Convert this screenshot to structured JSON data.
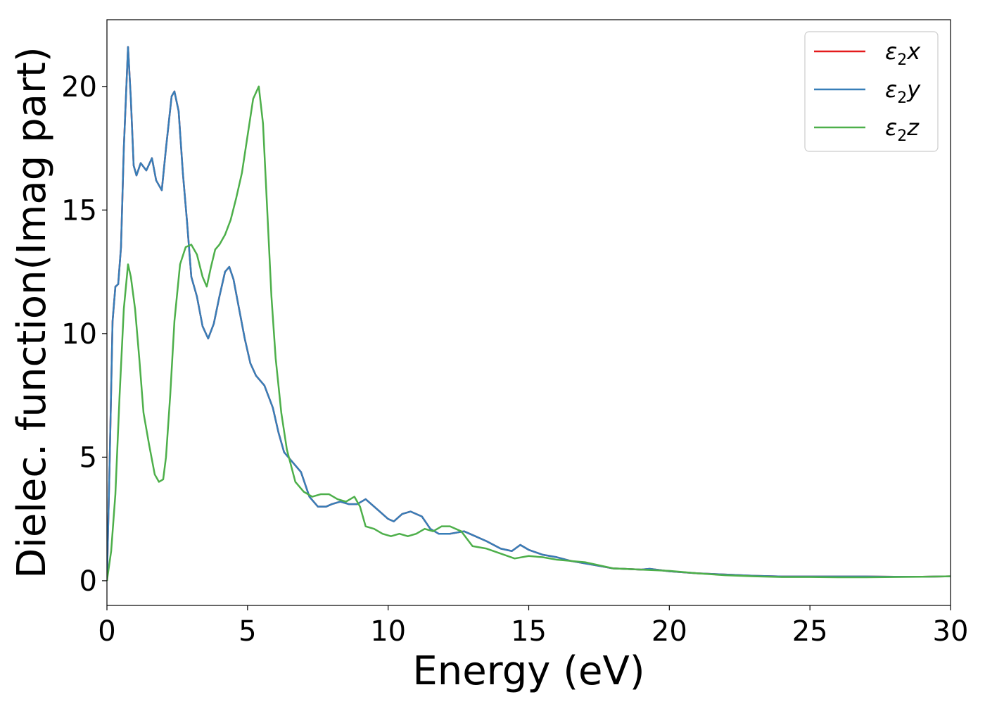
{
  "chart_data": {
    "type": "line",
    "xlabel": "Energy (eV)",
    "ylabel": "Dielec. function(Imag part)",
    "xlim": [
      0,
      30
    ],
    "ylim": [
      -1,
      22.7
    ],
    "xticks": [
      0,
      5,
      10,
      15,
      20,
      25,
      30
    ],
    "yticks": [
      0,
      5,
      10,
      15,
      20
    ],
    "legend_position": "top-right",
    "grid": false,
    "series": [
      {
        "name": "ε₂x",
        "legend": {
          "base": "ε",
          "sub": "2",
          "var": "x"
        },
        "color": "#e41a1c",
        "x": [
          0,
          0.1,
          0.2,
          0.3,
          0.4,
          0.5,
          0.6,
          0.75,
          0.85,
          0.95,
          1.05,
          1.2,
          1.4,
          1.6,
          1.75,
          1.95,
          2.1,
          2.3,
          2.4,
          2.55,
          2.7,
          2.85,
          3.0,
          3.2,
          3.4,
          3.6,
          3.8,
          4.0,
          4.2,
          4.35,
          4.5,
          4.7,
          4.9,
          5.1,
          5.3,
          5.6,
          5.9,
          6.1,
          6.3,
          6.6,
          6.9,
          7.2,
          7.5,
          7.8,
          8.0,
          8.3,
          8.6,
          8.9,
          9.2,
          9.4,
          9.7,
          10.0,
          10.2,
          10.5,
          10.8,
          11.2,
          11.5,
          11.8,
          12.2,
          12.7,
          13.1,
          13.5,
          14.0,
          14.4,
          14.7,
          15.0,
          15.5,
          16.0,
          16.5,
          17.0,
          17.5,
          18.0,
          19.0,
          19.3,
          20.0,
          21.0,
          22.0,
          23.0,
          24.0,
          25.0,
          26.0,
          27.0,
          28.0,
          29.0,
          30.0
        ],
        "y": [
          0,
          5.0,
          10.5,
          11.9,
          12.0,
          13.5,
          17.5,
          21.6,
          19.5,
          16.8,
          16.4,
          16.9,
          16.6,
          17.1,
          16.2,
          15.8,
          17.5,
          19.6,
          19.8,
          19.0,
          16.5,
          14.5,
          12.3,
          11.5,
          10.3,
          9.8,
          10.4,
          11.5,
          12.5,
          12.7,
          12.2,
          11.0,
          9.8,
          8.8,
          8.3,
          7.9,
          7.0,
          6.0,
          5.2,
          4.8,
          4.4,
          3.4,
          3.0,
          3.0,
          3.1,
          3.2,
          3.1,
          3.1,
          3.3,
          3.1,
          2.8,
          2.5,
          2.4,
          2.7,
          2.8,
          2.6,
          2.1,
          1.9,
          1.9,
          2.0,
          1.8,
          1.6,
          1.3,
          1.2,
          1.45,
          1.25,
          1.05,
          0.95,
          0.8,
          0.7,
          0.6,
          0.5,
          0.45,
          0.48,
          0.38,
          0.3,
          0.25,
          0.2,
          0.17,
          0.17,
          0.17,
          0.17,
          0.16,
          0.16,
          0.18
        ]
      },
      {
        "name": "ε₂y",
        "legend": {
          "base": "ε",
          "sub": "2",
          "var": "y"
        },
        "color": "#377eb8",
        "x": [
          0,
          0.1,
          0.2,
          0.3,
          0.4,
          0.5,
          0.6,
          0.75,
          0.85,
          0.95,
          1.05,
          1.2,
          1.4,
          1.6,
          1.75,
          1.95,
          2.1,
          2.3,
          2.4,
          2.55,
          2.7,
          2.85,
          3.0,
          3.2,
          3.4,
          3.6,
          3.8,
          4.0,
          4.2,
          4.35,
          4.5,
          4.7,
          4.9,
          5.1,
          5.3,
          5.6,
          5.9,
          6.1,
          6.3,
          6.6,
          6.9,
          7.2,
          7.5,
          7.8,
          8.0,
          8.3,
          8.6,
          8.9,
          9.2,
          9.4,
          9.7,
          10.0,
          10.2,
          10.5,
          10.8,
          11.2,
          11.5,
          11.8,
          12.2,
          12.7,
          13.1,
          13.5,
          14.0,
          14.4,
          14.7,
          15.0,
          15.5,
          16.0,
          16.5,
          17.0,
          17.5,
          18.0,
          19.0,
          19.3,
          20.0,
          21.0,
          22.0,
          23.0,
          24.0,
          25.0,
          26.0,
          27.0,
          28.0,
          29.0,
          30.0
        ],
        "y": [
          0,
          5.0,
          10.5,
          11.9,
          12.0,
          13.5,
          17.5,
          21.6,
          19.5,
          16.8,
          16.4,
          16.9,
          16.6,
          17.1,
          16.2,
          15.8,
          17.5,
          19.6,
          19.8,
          19.0,
          16.5,
          14.5,
          12.3,
          11.5,
          10.3,
          9.8,
          10.4,
          11.5,
          12.5,
          12.7,
          12.2,
          11.0,
          9.8,
          8.8,
          8.3,
          7.9,
          7.0,
          6.0,
          5.2,
          4.8,
          4.4,
          3.4,
          3.0,
          3.0,
          3.1,
          3.2,
          3.1,
          3.1,
          3.3,
          3.1,
          2.8,
          2.5,
          2.4,
          2.7,
          2.8,
          2.6,
          2.1,
          1.9,
          1.9,
          2.0,
          1.8,
          1.6,
          1.3,
          1.2,
          1.45,
          1.25,
          1.05,
          0.95,
          0.8,
          0.7,
          0.6,
          0.5,
          0.45,
          0.48,
          0.38,
          0.3,
          0.25,
          0.2,
          0.17,
          0.17,
          0.17,
          0.17,
          0.16,
          0.16,
          0.18
        ]
      },
      {
        "name": "ε₂z",
        "legend": {
          "base": "ε",
          "sub": "2",
          "var": "z"
        },
        "color": "#4daf4a",
        "x": [
          0,
          0.15,
          0.3,
          0.45,
          0.6,
          0.75,
          0.85,
          1.0,
          1.15,
          1.3,
          1.5,
          1.7,
          1.85,
          2.0,
          2.1,
          2.25,
          2.4,
          2.6,
          2.8,
          3.0,
          3.2,
          3.4,
          3.55,
          3.7,
          3.85,
          4.0,
          4.2,
          4.4,
          4.6,
          4.8,
          5.0,
          5.2,
          5.4,
          5.55,
          5.7,
          5.85,
          6.0,
          6.2,
          6.4,
          6.7,
          7.0,
          7.3,
          7.6,
          7.9,
          8.2,
          8.5,
          8.8,
          9.0,
          9.2,
          9.5,
          9.8,
          10.1,
          10.4,
          10.7,
          11.0,
          11.3,
          11.6,
          11.9,
          12.2,
          12.6,
          13.0,
          13.5,
          14.0,
          14.5,
          15.0,
          15.5,
          16.0,
          16.5,
          17.0,
          18.0,
          19.0,
          20.0,
          21.0,
          22.0,
          23.0,
          24.0,
          25.0,
          26.0,
          27.0,
          28.0,
          29.0,
          30.0
        ],
        "y": [
          0,
          1.2,
          3.5,
          7.5,
          11.0,
          12.8,
          12.3,
          11.0,
          9.0,
          6.8,
          5.5,
          4.3,
          4.0,
          4.1,
          5.0,
          7.5,
          10.5,
          12.8,
          13.5,
          13.6,
          13.2,
          12.3,
          11.9,
          12.7,
          13.4,
          13.6,
          14.0,
          14.6,
          15.5,
          16.5,
          18.0,
          19.5,
          20.0,
          18.5,
          15.0,
          11.5,
          9.0,
          6.8,
          5.3,
          4.0,
          3.6,
          3.4,
          3.5,
          3.5,
          3.3,
          3.2,
          3.4,
          3.0,
          2.2,
          2.1,
          1.9,
          1.8,
          1.9,
          1.8,
          1.9,
          2.1,
          2.0,
          2.2,
          2.2,
          2.0,
          1.4,
          1.3,
          1.1,
          0.9,
          1.0,
          0.95,
          0.85,
          0.8,
          0.75,
          0.5,
          0.45,
          0.4,
          0.3,
          0.22,
          0.18,
          0.15,
          0.15,
          0.14,
          0.14,
          0.15,
          0.16,
          0.18
        ]
      }
    ]
  }
}
